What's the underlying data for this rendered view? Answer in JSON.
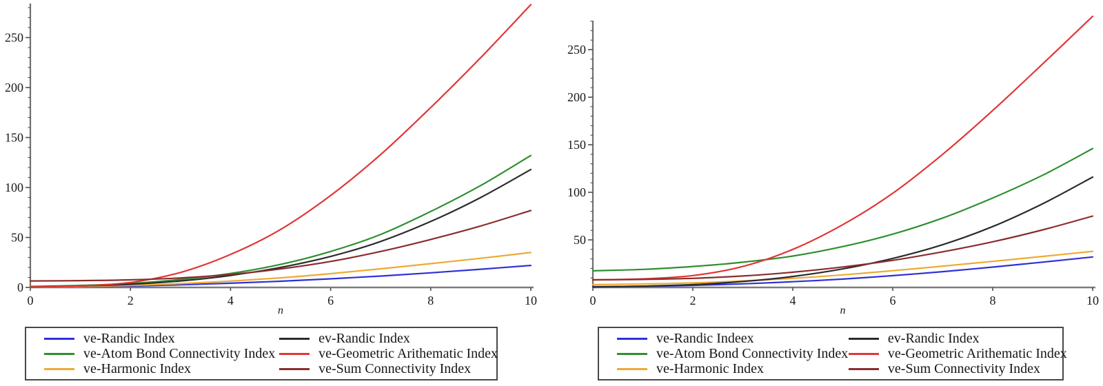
{
  "colors": {
    "background": "#ffffff",
    "x_axis": "#7d7d7d",
    "y_axis": "#6f6f6f",
    "tick": "#4f4f4f",
    "tick_text": "#191919",
    "legend_border": "#474747",
    "legend_text": "#161616"
  },
  "chart_data": [
    {
      "type": "line",
      "title": "",
      "xlabel": "n",
      "ylabel": "",
      "xlim": [
        0,
        10
      ],
      "ylim": [
        0,
        285
      ],
      "grid": false,
      "legend_position": "below",
      "x_ticks": [
        0,
        2,
        4,
        6,
        8,
        10
      ],
      "y_ticks": [
        0,
        50,
        100,
        150,
        200,
        250
      ],
      "y_minor_step": 10,
      "x": [
        0,
        1,
        2,
        3,
        4,
        5,
        6,
        7,
        8,
        9,
        10
      ],
      "series": [
        {
          "name": "ve-Randic Index",
          "color": "#2f2fd9",
          "values": [
            0.4,
            0.7,
            1.4,
            2.6,
            4.2,
            6.2,
            8.6,
            11.4,
            14.6,
            18.2,
            22
          ]
        },
        {
          "name": "ve-Atom Bond Connectivity Index",
          "color": "#2f8f2f",
          "values": [
            1,
            2,
            4,
            8,
            14,
            23,
            36,
            53,
            76,
            102,
            132
          ]
        },
        {
          "name": "ve-Harmonic Index",
          "color": "#edaa33",
          "values": [
            0.4,
            0.9,
            2,
            3.8,
            6.3,
            9.6,
            13.8,
            18.6,
            23.8,
            29.2,
            35
          ]
        },
        {
          "name": "ev-Randic Index",
          "color": "#2b2b2b",
          "values": [
            0.5,
            1.5,
            3.2,
            6.5,
            12,
            20,
            31,
            46,
            66,
            90,
            118
          ]
        },
        {
          "name": "ve-Geometric Arithematic Index",
          "color": "#e13535",
          "values": [
            0.5,
            1.5,
            5,
            15,
            33,
            58,
            92,
            133,
            180,
            230,
            283
          ]
        },
        {
          "name": "ve-Sum Connectivity Index",
          "color": "#8a2c2c",
          "values": [
            6.5,
            6.8,
            7.6,
            9.5,
            13,
            18.5,
            26,
            36,
            48,
            61.5,
            77
          ]
        }
      ]
    },
    {
      "type": "line",
      "title": "",
      "xlabel": "n",
      "ylabel": "",
      "xlim": [
        0,
        10
      ],
      "ylim": [
        0,
        290
      ],
      "grid": false,
      "legend_position": "below",
      "x_ticks": [
        0,
        2,
        4,
        6,
        8,
        10
      ],
      "y_ticks": [
        50,
        100,
        150,
        200,
        250
      ],
      "y_minor_step": 10,
      "x": [
        0,
        1,
        2,
        3,
        4,
        5,
        6,
        7,
        8,
        9,
        10
      ],
      "series": [
        {
          "name": "ve-Randic Indeex",
          "color": "#2f2fd9",
          "values": [
            0.8,
            1.2,
            2.2,
            3.8,
            6,
            8.8,
            12.4,
            16.6,
            21.4,
            26.6,
            32
          ]
        },
        {
          "name": "ve-Atom Bond Connectivity Index",
          "color": "#2f8f2f",
          "values": [
            17.5,
            19,
            22,
            26.5,
            33,
            43,
            56,
            73,
            94,
            118,
            146
          ]
        },
        {
          "name": "ve-Harmonic Index",
          "color": "#edaa33",
          "values": [
            3,
            3.6,
            4.8,
            6.8,
            9.6,
            13.2,
            17.6,
            22.4,
            27.4,
            32.6,
            38
          ]
        },
        {
          "name": "ev-Randic Index",
          "color": "#2b2b2b",
          "values": [
            0.5,
            1.4,
            3,
            6.2,
            11.5,
            19.5,
            30.5,
            45,
            64,
            88,
            116
          ]
        },
        {
          "name": "ve-Geometric Arithematic Index",
          "color": "#e13535",
          "values": [
            8,
            9,
            12.5,
            22,
            40,
            66,
            99,
            140,
            186,
            235,
            285
          ]
        },
        {
          "name": "ve-Sum Connectivity Index",
          "color": "#8a2c2c",
          "values": [
            8,
            8.4,
            9.6,
            12,
            16,
            21.5,
            28.5,
            37.5,
            48,
            60.5,
            75
          ]
        }
      ]
    }
  ]
}
